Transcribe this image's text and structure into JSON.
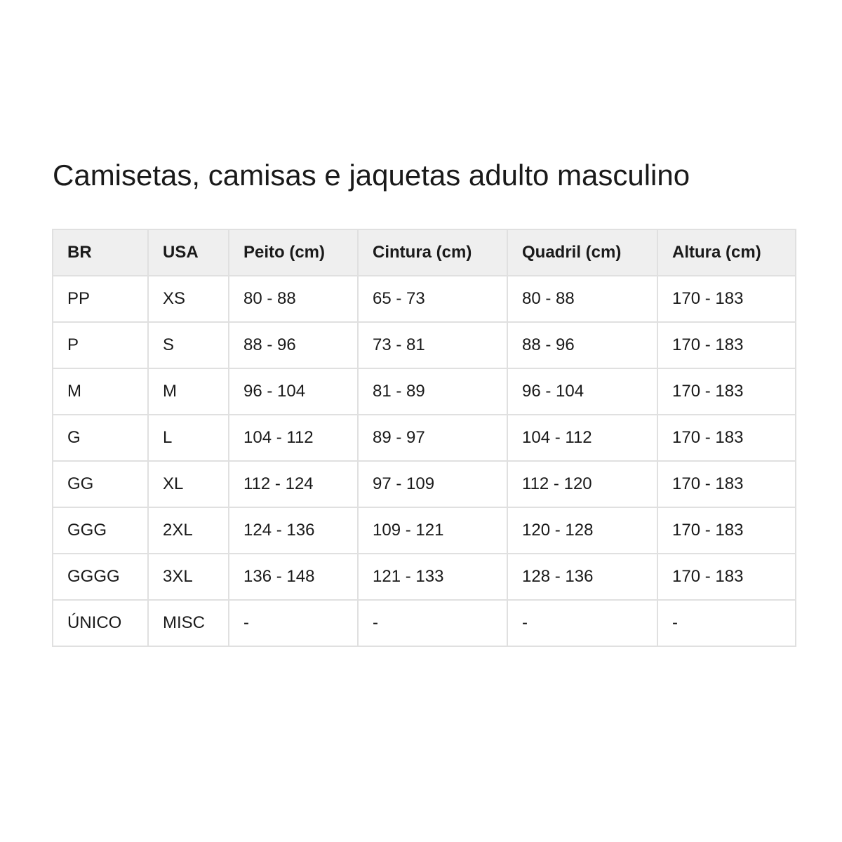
{
  "title": "Camisetas, camisas e jaquetas adulto masculino",
  "table": {
    "headers": [
      "BR",
      "USA",
      "Peito (cm)",
      "Cintura (cm)",
      "Quadril (cm)",
      "Altura (cm)"
    ],
    "rows": [
      [
        "PP",
        "XS",
        "80 - 88",
        "65 - 73",
        "80 - 88",
        "170 - 183"
      ],
      [
        "P",
        "S",
        "88 - 96",
        "73 - 81",
        "88 - 96",
        "170 - 183"
      ],
      [
        "M",
        "M",
        "96 - 104",
        "81 - 89",
        "96 - 104",
        "170 - 183"
      ],
      [
        "G",
        "L",
        "104 - 112",
        "89 - 97",
        "104 - 112",
        "170 - 183"
      ],
      [
        "GG",
        "XL",
        "112 - 124",
        "97 - 109",
        "112 - 120",
        "170 - 183"
      ],
      [
        "GGG",
        "2XL",
        "124 - 136",
        "109 - 121",
        "120 - 128",
        "170 - 183"
      ],
      [
        "GGGG",
        "3XL",
        "136 - 148",
        "121 - 133",
        "128 - 136",
        "170 - 183"
      ],
      [
        "ÚNICO",
        "MISC",
        "-",
        "-",
        "-",
        "-"
      ]
    ]
  }
}
